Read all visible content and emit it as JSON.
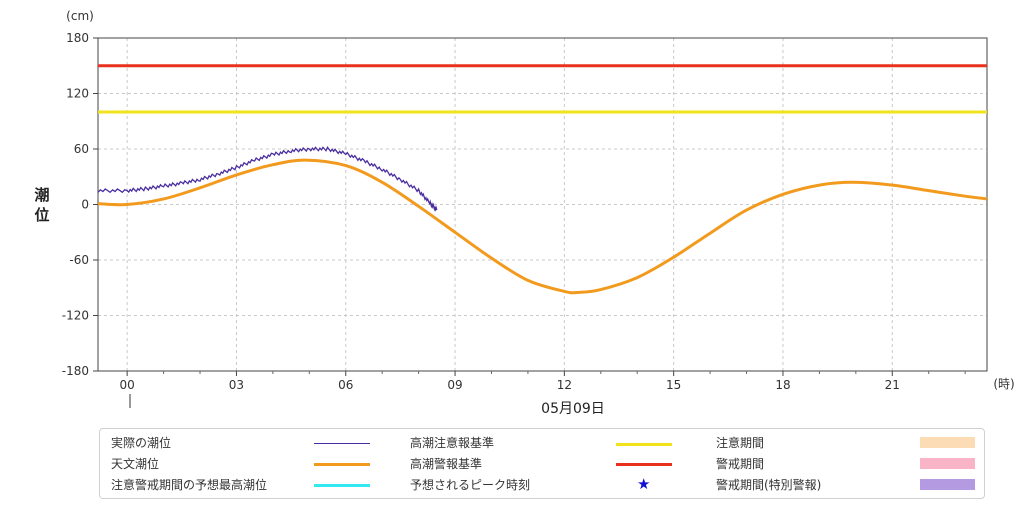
{
  "chart_data": {
    "type": "line",
    "ylabel": "潮位",
    "yunit": "(cm)",
    "xunit": "(時)",
    "date_label": "05月09日",
    "ylim": [
      -180,
      180
    ],
    "xlim": [
      -0.8,
      23.6
    ],
    "yticks": [
      "180",
      "120",
      "60",
      "0",
      "-60",
      "-120",
      "-180"
    ],
    "xticks": [
      "00",
      "03",
      "06",
      "09",
      "12",
      "15",
      "18",
      "21"
    ],
    "grid": true,
    "thresholds": [
      {
        "name": "高潮警報基準",
        "value": 150,
        "color": "#e8321e"
      },
      {
        "name": "高潮注意報基準",
        "value": 100,
        "color": "#f2e21b"
      }
    ],
    "series": [
      {
        "name": "天文潮位",
        "color": "#f29a1e",
        "x": [
          -0.8,
          0,
          1,
          2,
          3,
          4,
          4.9,
          6,
          7,
          8,
          9,
          10,
          11,
          12,
          12.4,
          13,
          14,
          15,
          16,
          17,
          18,
          19,
          19.9,
          21,
          22,
          23,
          23.6
        ],
        "y": [
          1,
          0,
          6,
          18,
          32,
          43,
          48,
          42,
          24,
          -2,
          -30,
          -58,
          -82,
          -94,
          -95,
          -92,
          -79,
          -57,
          -31,
          -6,
          11,
          21,
          24,
          21,
          15,
          9,
          6
        ]
      },
      {
        "name": "実際の潮位",
        "color": "#4a2ea0",
        "x": [
          -0.8,
          0,
          0.5,
          1,
          1.5,
          2,
          2.5,
          3,
          3.5,
          4,
          4.5,
          5,
          5.5,
          6,
          6.5,
          7,
          7.5,
          8,
          8.3,
          8.5
        ],
        "y": [
          15,
          15,
          17,
          20,
          23,
          27,
          33,
          40,
          48,
          54,
          58,
          60,
          60,
          55,
          47,
          38,
          27,
          15,
          2,
          -6
        ]
      }
    ]
  },
  "legend": {
    "items": [
      {
        "label": "実際の潮位",
        "kind": "line",
        "color": "#4a2ea0"
      },
      {
        "label": "天文潮位",
        "kind": "line",
        "color": "#f29a1e"
      },
      {
        "label": "注意警戒期間の予想最高潮位",
        "kind": "line",
        "color": "#33e8f0"
      },
      {
        "label": "高潮注意報基準",
        "kind": "line",
        "color": "#f2e21b"
      },
      {
        "label": "高潮警報基準",
        "kind": "line",
        "color": "#e8321e"
      },
      {
        "label": "予想されるピーク時刻",
        "kind": "star",
        "color": "#1010d0"
      },
      {
        "label": "注意期間",
        "kind": "rect",
        "color": "#fcdcb4"
      },
      {
        "label": "警戒期間",
        "kind": "rect",
        "color": "#f9b4c8"
      },
      {
        "label": "警戒期間(特別警報)",
        "kind": "rect",
        "color": "#b49ae0"
      }
    ]
  }
}
